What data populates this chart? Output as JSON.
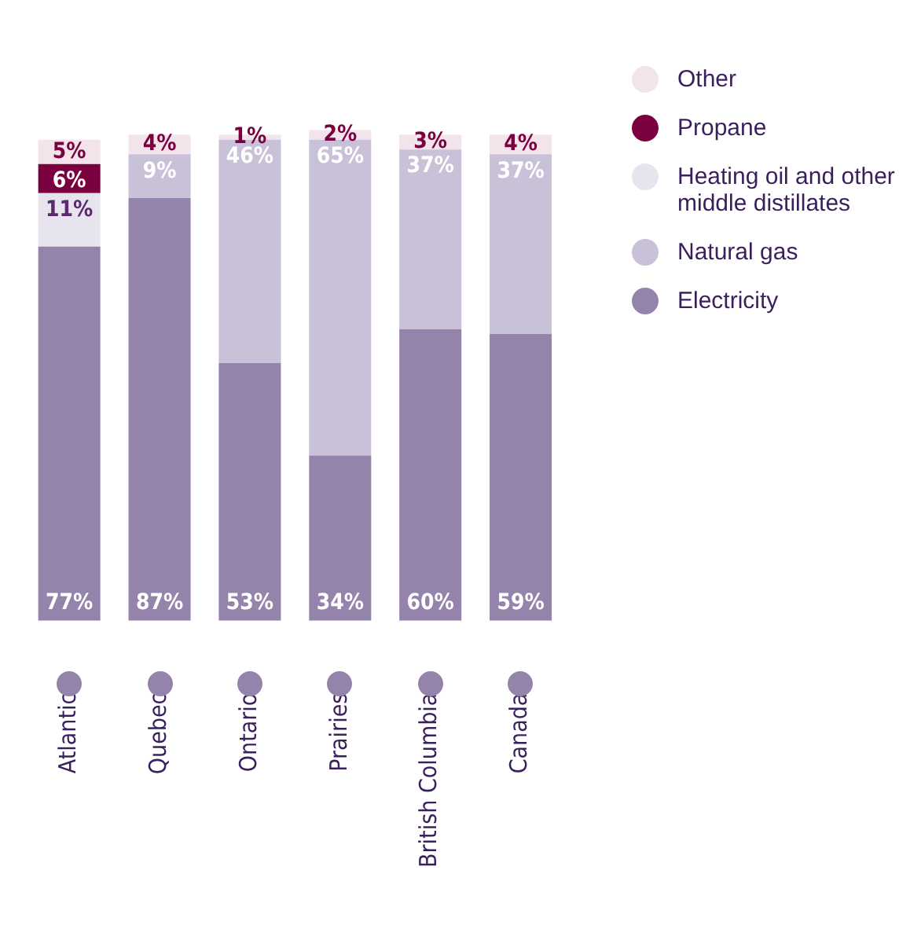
{
  "chart_data": {
    "type": "bar",
    "stacked": true,
    "legend": "right",
    "grid": false,
    "tick_labels": "x",
    "categories": [
      "Atlantic",
      "Quebec",
      "Ontario",
      "Prairies",
      "British Columbia",
      "Canada"
    ],
    "series": [
      {
        "name": "Electricity",
        "color": "#9484ac",
        "values": [
          77,
          87,
          53,
          34,
          60,
          59
        ],
        "value_labels": [
          "77%",
          "87%",
          "53%",
          "34%",
          "60%",
          "59%"
        ]
      },
      {
        "name": "Natural gas",
        "color": "#c9c1d8",
        "values": [
          null,
          9,
          46,
          65,
          37,
          37
        ],
        "value_labels": [
          null,
          "9%",
          "46%",
          "65%",
          "37%",
          "37%"
        ]
      },
      {
        "name": "Heating oil and other middle distillates",
        "color": "#e8e4ee",
        "values": [
          11,
          null,
          null,
          null,
          null,
          null
        ],
        "value_labels": [
          "11%",
          null,
          null,
          null,
          null,
          null
        ]
      },
      {
        "name": "Propane",
        "color": "#7a0040",
        "values": [
          6,
          null,
          null,
          null,
          null,
          null
        ],
        "value_labels": [
          "6%",
          null,
          null,
          null,
          null,
          null
        ]
      },
      {
        "name": "Other",
        "color": "#f2e4ea",
        "values": [
          5,
          4,
          1,
          2,
          3,
          4
        ],
        "value_labels": [
          "5%",
          "4%",
          "1%",
          "2%",
          "3%",
          "4%"
        ]
      }
    ]
  }
}
